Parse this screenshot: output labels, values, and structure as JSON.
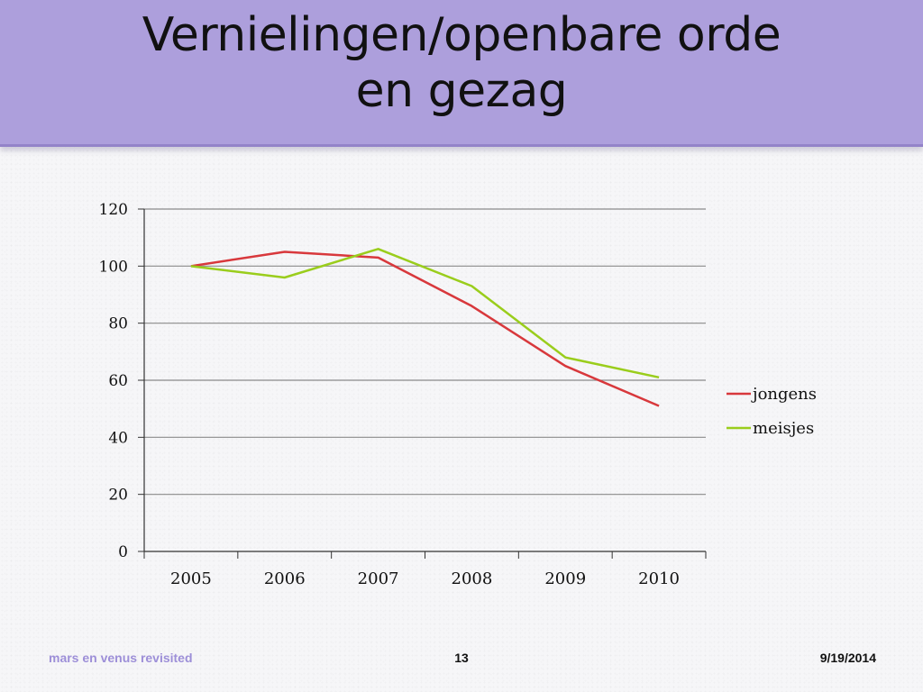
{
  "slide": {
    "title_line1": "Vernielingen/openbare orde",
    "title_line2": "en gezag",
    "footer_left": "mars en venus revisited",
    "page_number": "13",
    "date": "9/19/2014"
  },
  "chart_data": {
    "type": "line",
    "categories": [
      "2005",
      "2006",
      "2007",
      "2008",
      "2009",
      "2010"
    ],
    "series": [
      {
        "name": "jongens",
        "color": "#d8383c",
        "values": [
          100,
          105,
          103,
          86,
          65,
          51
        ]
      },
      {
        "name": "meisjes",
        "color": "#9acd1c",
        "values": [
          100,
          96,
          106,
          93,
          68,
          61
        ]
      }
    ],
    "ylim": [
      0,
      120
    ],
    "yticks": [
      "0",
      "20",
      "40",
      "60",
      "80",
      "100",
      "120"
    ],
    "grid": true,
    "legend": "right"
  }
}
